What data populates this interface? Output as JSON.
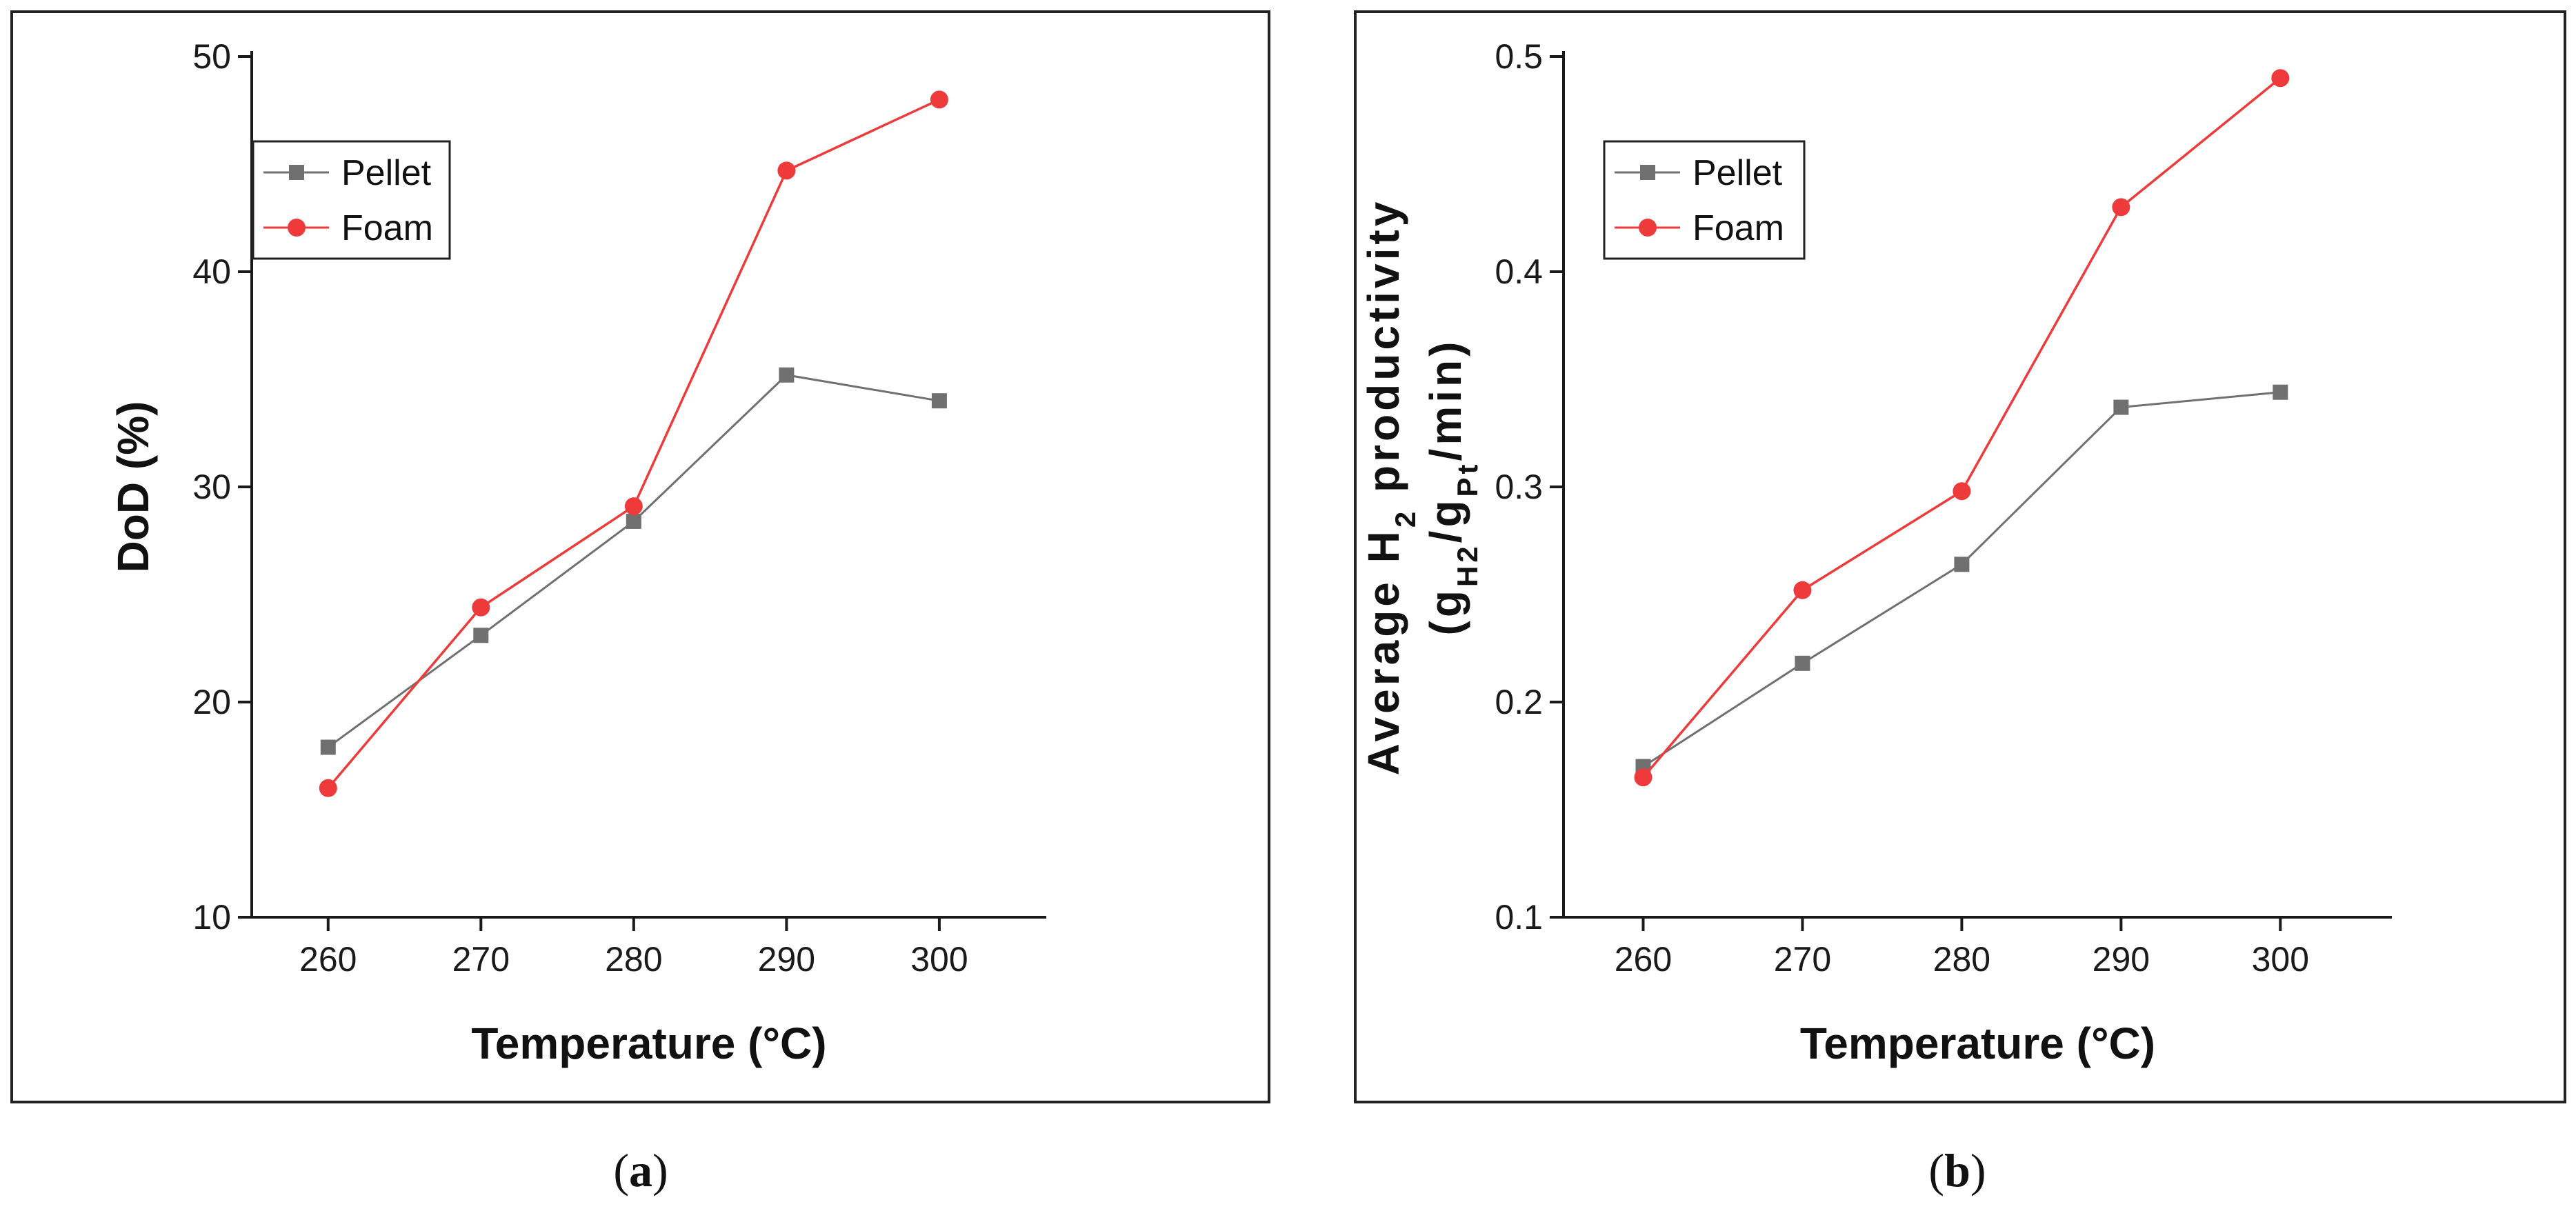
{
  "colors": {
    "pellet": "#707070",
    "foam": "#ee3a3a",
    "axis": "#1a1a1a"
  },
  "chart_data": [
    {
      "type": "line",
      "panel": "a",
      "x": [
        260,
        270,
        280,
        290,
        300
      ],
      "x_ticks": [
        "260",
        "270",
        "280",
        "290",
        "300"
      ],
      "xlim": [
        255,
        307
      ],
      "ylim": [
        10,
        50
      ],
      "y_ticks": [
        "10",
        "20",
        "30",
        "40",
        "50"
      ],
      "xlabel": "Temperature (°C)",
      "ylabel": "DoD (%)",
      "legend": {
        "position": "top-left",
        "entries": [
          "Pellet",
          "Foam"
        ]
      },
      "series": [
        {
          "name": "Pellet",
          "marker": "square",
          "values": [
            17.9,
            23.1,
            28.4,
            35.2,
            34.0
          ]
        },
        {
          "name": "Foam",
          "marker": "circle",
          "values": [
            16.0,
            24.4,
            29.1,
            44.7,
            48.0
          ]
        }
      ],
      "caption": {
        "open": "(",
        "letter": "a",
        "close": ")"
      }
    },
    {
      "type": "line",
      "panel": "b",
      "x": [
        260,
        270,
        280,
        290,
        300
      ],
      "x_ticks": [
        "260",
        "270",
        "280",
        "290",
        "300"
      ],
      "xlim": [
        255,
        307
      ],
      "ylim": [
        0.1,
        0.5
      ],
      "y_ticks": [
        "0.1",
        "0.2",
        "0.3",
        "0.4",
        "0.5"
      ],
      "xlabel": "Temperature (°C)",
      "ylabel": {
        "line1_prefix": "Average H",
        "line1_sub": "2",
        "line1_suffix": " productivity",
        "line2_open": "(g",
        "line2_sub1": "H2",
        "line2_mid": "/g",
        "line2_sub2": "Pt",
        "line2_end": "/min)"
      },
      "legend": {
        "position": "top-left",
        "entries": [
          "Pellet",
          "Foam"
        ]
      },
      "series": [
        {
          "name": "Pellet",
          "marker": "square",
          "values": [
            0.17,
            0.218,
            0.264,
            0.337,
            0.344
          ]
        },
        {
          "name": "Foam",
          "marker": "circle",
          "values": [
            0.165,
            0.252,
            0.298,
            0.43,
            0.49
          ]
        }
      ],
      "caption": {
        "open": "(",
        "letter": "b",
        "close": ")"
      }
    }
  ]
}
